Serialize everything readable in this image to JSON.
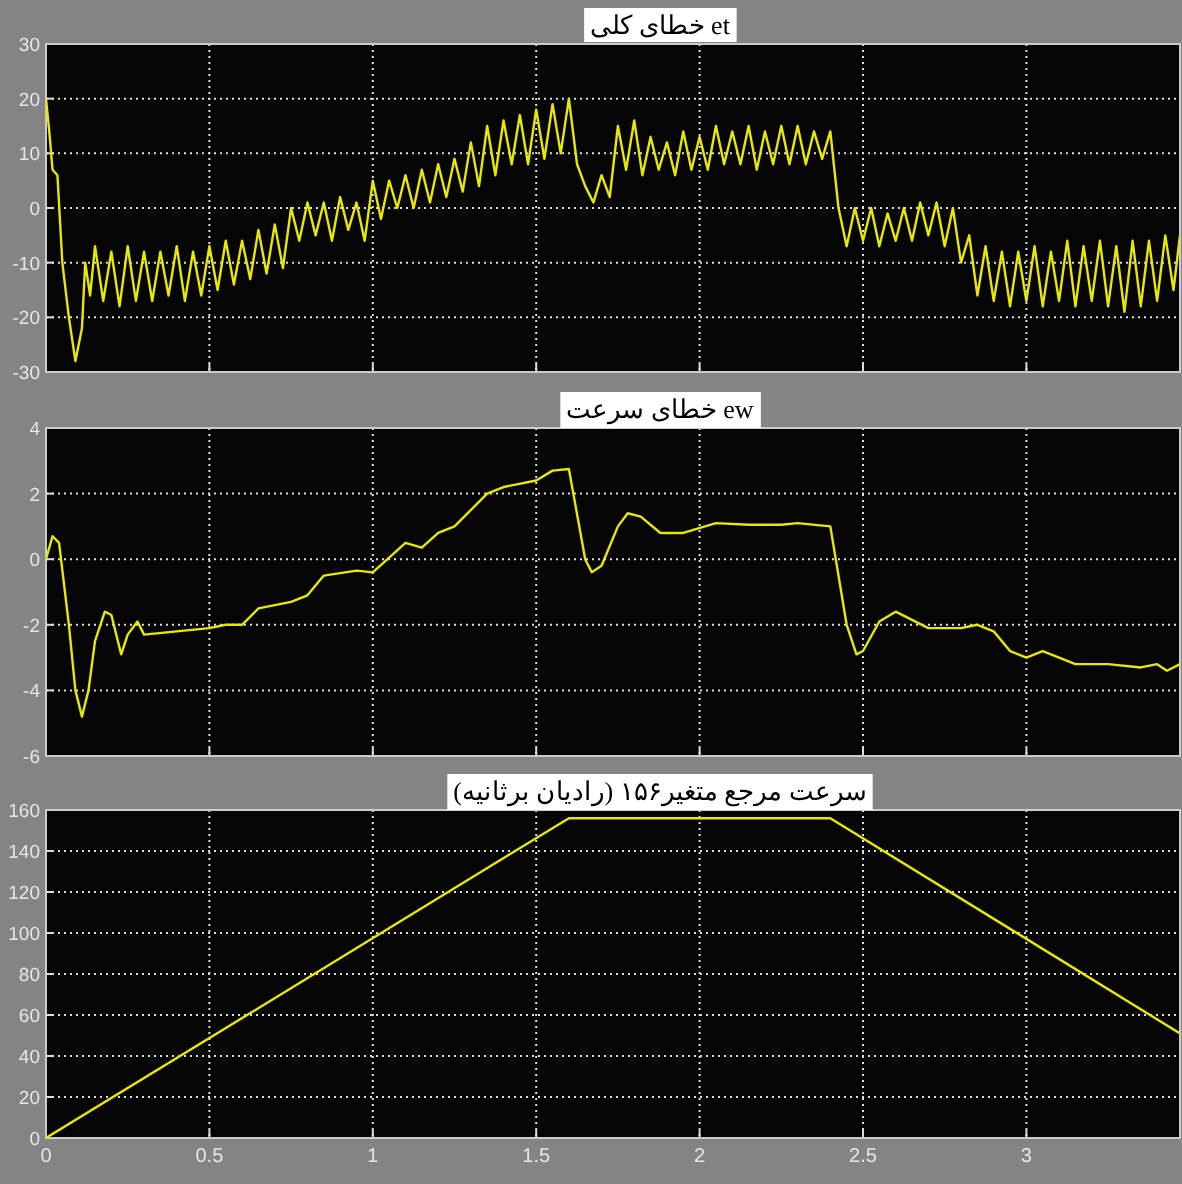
{
  "chart_data": [
    {
      "type": "line",
      "title": "خطای کلی et",
      "color": "#e8e800",
      "grid": true,
      "tick_labels": "y",
      "xlim": [
        0,
        3.47
      ],
      "xticks": [
        {
          "value": 0,
          "label": null
        },
        {
          "value": 0.5,
          "label": null
        },
        {
          "value": 1,
          "label": null
        },
        {
          "value": 1.5,
          "label": null
        },
        {
          "value": 2,
          "label": null
        },
        {
          "value": 2.5,
          "label": null
        },
        {
          "value": 3,
          "label": null
        }
      ],
      "ylim": [
        -30,
        30
      ],
      "yticks": [
        -30,
        -20,
        -10,
        0,
        10,
        20,
        30
      ],
      "x": [
        0,
        0.01,
        0.02,
        0.035,
        0.05,
        0.07,
        0.09,
        0.11,
        0.12,
        0.135,
        0.15,
        0.175,
        0.2,
        0.225,
        0.25,
        0.275,
        0.3,
        0.325,
        0.35,
        0.375,
        0.4,
        0.425,
        0.45,
        0.475,
        0.5,
        0.525,
        0.55,
        0.575,
        0.6,
        0.625,
        0.65,
        0.675,
        0.7,
        0.725,
        0.75,
        0.775,
        0.8,
        0.825,
        0.85,
        0.875,
        0.9,
        0.925,
        0.95,
        0.975,
        1.0,
        1.025,
        1.05,
        1.075,
        1.1,
        1.125,
        1.15,
        1.175,
        1.2,
        1.225,
        1.25,
        1.275,
        1.3,
        1.325,
        1.35,
        1.375,
        1.4,
        1.425,
        1.45,
        1.475,
        1.5,
        1.525,
        1.55,
        1.575,
        1.6,
        1.625,
        1.65,
        1.675,
        1.7,
        1.725,
        1.75,
        1.775,
        1.8,
        1.825,
        1.85,
        1.875,
        1.9,
        1.925,
        1.95,
        1.975,
        2.0,
        2.025,
        2.05,
        2.075,
        2.1,
        2.125,
        2.15,
        2.175,
        2.2,
        2.225,
        2.25,
        2.275,
        2.3,
        2.325,
        2.35,
        2.375,
        2.4,
        2.425,
        2.45,
        2.475,
        2.5,
        2.525,
        2.55,
        2.575,
        2.6,
        2.625,
        2.65,
        2.675,
        2.7,
        2.725,
        2.75,
        2.775,
        2.8,
        2.825,
        2.85,
        2.875,
        2.9,
        2.925,
        2.95,
        2.975,
        3.0,
        3.025,
        3.05,
        3.075,
        3.1,
        3.125,
        3.15,
        3.175,
        3.2,
        3.225,
        3.25,
        3.275,
        3.3,
        3.325,
        3.35,
        3.375,
        3.4,
        3.425,
        3.45,
        3.47
      ],
      "values": [
        20,
        14,
        7,
        6,
        -10,
        -20,
        -28,
        -22,
        -10,
        -16,
        -7,
        -17,
        -8,
        -18,
        -7,
        -17,
        -8,
        -17,
        -8,
        -16,
        -7,
        -17,
        -8,
        -16,
        -7,
        -15,
        -6,
        -14,
        -6,
        -13,
        -4,
        -12,
        -3,
        -11,
        0,
        -6,
        1,
        -5,
        1,
        -6,
        2,
        -4,
        1,
        -6,
        5,
        -2,
        5,
        0,
        6,
        0,
        7,
        1,
        8,
        2,
        9,
        3,
        12,
        4,
        15,
        6,
        16,
        8,
        17,
        8,
        18,
        9,
        19,
        10,
        20,
        8,
        4,
        1,
        6,
        2,
        15,
        7,
        16,
        6,
        13,
        7,
        12,
        6,
        14,
        7,
        13,
        7,
        15,
        8,
        14,
        8,
        15,
        7,
        14,
        8,
        15,
        8,
        15,
        8,
        14,
        9,
        14,
        0,
        -7,
        0,
        -6,
        0,
        -7,
        -1,
        -6,
        0,
        -6,
        1,
        -5,
        1,
        -7,
        0,
        -10,
        -5,
        -16,
        -7,
        -17,
        -8,
        -18,
        -8,
        -17,
        -7,
        -18,
        -8,
        -17,
        -6,
        -18,
        -7,
        -17,
        -6,
        -18,
        -7,
        -19,
        -6,
        -18,
        -6,
        -17,
        -5,
        -15,
        -5
      ]
    },
    {
      "type": "line",
      "title": "خطای سرعت ew",
      "color": "#e8e800",
      "grid": true,
      "tick_labels": "y",
      "xlim": [
        0,
        3.47
      ],
      "xticks": [
        {
          "value": 0,
          "label": null
        },
        {
          "value": 0.5,
          "label": null
        },
        {
          "value": 1,
          "label": null
        },
        {
          "value": 1.5,
          "label": null
        },
        {
          "value": 2,
          "label": null
        },
        {
          "value": 2.5,
          "label": null
        },
        {
          "value": 3,
          "label": null
        }
      ],
      "ylim": [
        -6,
        4
      ],
      "yticks": [
        -6,
        -4,
        -2,
        0,
        2,
        4
      ],
      "x": [
        0,
        0.02,
        0.04,
        0.07,
        0.09,
        0.11,
        0.13,
        0.15,
        0.18,
        0.2,
        0.23,
        0.25,
        0.28,
        0.3,
        0.4,
        0.5,
        0.55,
        0.6,
        0.65,
        0.75,
        0.8,
        0.85,
        0.95,
        1.0,
        1.1,
        1.15,
        1.2,
        1.25,
        1.35,
        1.4,
        1.5,
        1.55,
        1.6,
        1.65,
        1.67,
        1.7,
        1.75,
        1.78,
        1.82,
        1.88,
        1.95,
        2.05,
        2.15,
        2.25,
        2.3,
        2.4,
        2.45,
        2.48,
        2.5,
        2.55,
        2.6,
        2.7,
        2.8,
        2.85,
        2.9,
        2.95,
        3.0,
        3.05,
        3.1,
        3.15,
        3.25,
        3.35,
        3.4,
        3.43,
        3.47
      ],
      "values": [
        0,
        0.7,
        0.5,
        -2,
        -4,
        -4.8,
        -4,
        -2.5,
        -1.6,
        -1.7,
        -2.9,
        -2.3,
        -1.9,
        -2.3,
        -2.2,
        -2.1,
        -2,
        -2,
        -1.5,
        -1.3,
        -1.1,
        -0.5,
        -0.35,
        -0.4,
        0.5,
        0.35,
        0.8,
        1,
        2,
        2.2,
        2.4,
        2.7,
        2.75,
        0,
        -0.4,
        -0.2,
        1,
        1.4,
        1.3,
        0.8,
        0.8,
        1.1,
        1.05,
        1.05,
        1.1,
        1,
        -2,
        -2.9,
        -2.8,
        -1.9,
        -1.6,
        -2.1,
        -2.1,
        -2,
        -2.2,
        -2.8,
        -3,
        -2.8,
        -3,
        -3.2,
        -3.2,
        -3.3,
        -3.2,
        -3.4,
        -3.2
      ]
    },
    {
      "type": "line",
      "title": "سرعت مرجع متغیر۱۵۶ (رادیان برثانیه)",
      "color": "#e8e800",
      "grid": true,
      "xlim": [
        0,
        3.47
      ],
      "xticks": [
        0,
        0.5,
        1,
        1.5,
        2,
        2.5,
        3
      ],
      "ylim": [
        0,
        160
      ],
      "yticks": [
        0,
        20,
        40,
        60,
        80,
        100,
        120,
        140,
        160
      ],
      "x": [
        0,
        1.6,
        2.4,
        3.47
      ],
      "values": [
        0,
        156,
        156,
        51
      ]
    }
  ]
}
